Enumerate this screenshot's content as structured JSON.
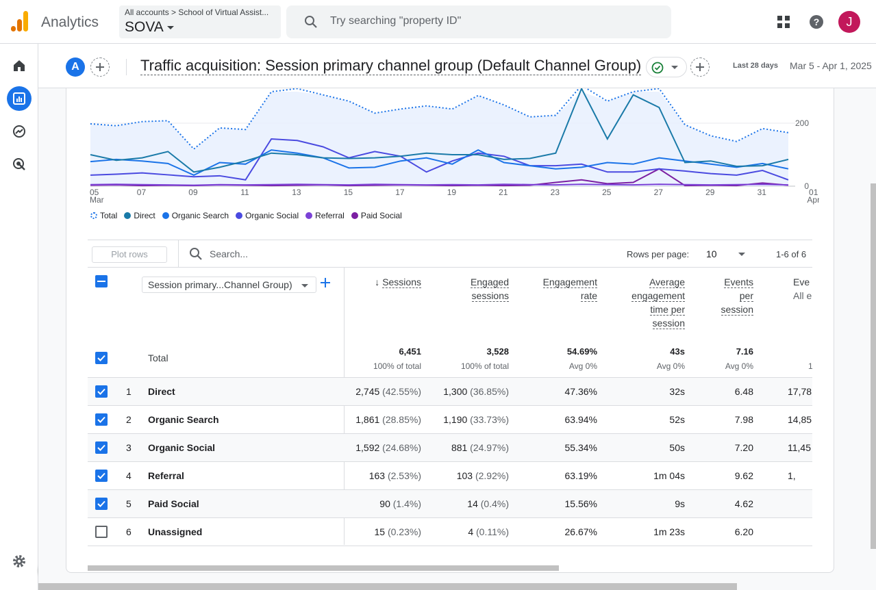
{
  "app": {
    "name": "Analytics",
    "account_crumb": "All accounts > School of Virtual Assist...",
    "property": "SOVA",
    "avatar_letter": "J"
  },
  "search": {
    "placeholder": "Try searching \"property ID\""
  },
  "icons": {
    "apps": "apps-grid-icon",
    "help": "help-icon",
    "home": "home-icon",
    "reports": "reports-icon",
    "explore": "explore-icon",
    "advertising": "advertising-icon",
    "settings": "gear-icon"
  },
  "header": {
    "comparison_chip": "A",
    "title": "Traffic acquisition: Session primary channel group (Default Channel Group)",
    "date_label": "Last 28 days",
    "date_range": "Mar 5 - Apr 1, 2025"
  },
  "chart_data": {
    "type": "line",
    "x": [
      "05 Mar",
      "06",
      "07",
      "08",
      "09",
      "10",
      "11",
      "12",
      "13",
      "14",
      "15",
      "16",
      "17",
      "18",
      "19",
      "20",
      "21",
      "22",
      "23",
      "24",
      "25",
      "26",
      "27",
      "28",
      "29",
      "30",
      "31",
      "01 Apr"
    ],
    "x_ticks": [
      {
        "main": "05",
        "sub": "Mar"
      },
      {
        "main": "07",
        "sub": ""
      },
      {
        "main": "09",
        "sub": ""
      },
      {
        "main": "11",
        "sub": ""
      },
      {
        "main": "13",
        "sub": ""
      },
      {
        "main": "15",
        "sub": ""
      },
      {
        "main": "17",
        "sub": ""
      },
      {
        "main": "19",
        "sub": ""
      },
      {
        "main": "21",
        "sub": ""
      },
      {
        "main": "23",
        "sub": ""
      },
      {
        "main": "25",
        "sub": ""
      },
      {
        "main": "27",
        "sub": ""
      },
      {
        "main": "29",
        "sub": ""
      },
      {
        "main": "31",
        "sub": ""
      },
      {
        "main": "01",
        "sub": "Apr"
      }
    ],
    "y_ticks": [
      "200",
      "0"
    ],
    "ylim": [
      0,
      300
    ],
    "series": [
      {
        "name": "Total",
        "color": "#1a73e8",
        "style": "dotted",
        "values": [
          198,
          192,
          205,
          208,
          118,
          185,
          180,
          300,
          310,
          290,
          270,
          232,
          245,
          255,
          245,
          288,
          258,
          220,
          225,
          320,
          270,
          300,
          310,
          195,
          160,
          142,
          183,
          170
        ]
      },
      {
        "name": "Direct",
        "color": "#1a7aa8",
        "style": "solid",
        "values": [
          100,
          82,
          90,
          110,
          45,
          60,
          80,
          105,
          100,
          90,
          88,
          90,
          95,
          105,
          100,
          100,
          85,
          88,
          105,
          310,
          150,
          290,
          250,
          75,
          80,
          63,
          65,
          85
        ]
      },
      {
        "name": "Organic Search",
        "color": "#1a73e8",
        "style": "solid",
        "values": [
          78,
          85,
          80,
          72,
          35,
          75,
          70,
          115,
          105,
          90,
          58,
          60,
          80,
          90,
          70,
          115,
          75,
          65,
          55,
          60,
          75,
          70,
          90,
          80,
          70,
          60,
          72,
          55
        ]
      },
      {
        "name": "Organic Social",
        "color": "#4a4ae0",
        "style": "solid",
        "values": [
          35,
          38,
          42,
          36,
          30,
          33,
          20,
          150,
          145,
          125,
          90,
          110,
          95,
          45,
          80,
          105,
          95,
          65,
          65,
          70,
          45,
          45,
          55,
          48,
          40,
          35,
          50,
          20
        ]
      },
      {
        "name": "Referral",
        "color": "#7b42d6",
        "style": "solid",
        "values": [
          5,
          6,
          5,
          4,
          3,
          5,
          4,
          5,
          6,
          5,
          4,
          6,
          5,
          4,
          5,
          4,
          6,
          5,
          4,
          6,
          5,
          4,
          6,
          5,
          4,
          5,
          6,
          4
        ]
      },
      {
        "name": "Paid Social",
        "color": "#7b1fa2",
        "style": "solid",
        "values": [
          3,
          4,
          2,
          3,
          2,
          4,
          3,
          2,
          3,
          4,
          2,
          3,
          4,
          3,
          2,
          3,
          2,
          3,
          12,
          20,
          8,
          12,
          55,
          2,
          3,
          2,
          10,
          3
        ]
      }
    ]
  },
  "table": {
    "plot_rows": "Plot rows",
    "search_placeholder": "Search...",
    "rows_per_page_label": "Rows per page:",
    "rows_per_page": "10",
    "pager": "1-6 of 6",
    "dimension": "Session primary...Channel Group)",
    "columns": [
      {
        "lines": [
          "Sessions"
        ],
        "sorted": true
      },
      {
        "lines": [
          "Engaged",
          "sessions"
        ]
      },
      {
        "lines": [
          "Engagement",
          "rate"
        ]
      },
      {
        "lines": [
          "Average",
          "engagement",
          "time per",
          "session"
        ]
      },
      {
        "lines": [
          "Events",
          "per",
          "session"
        ]
      },
      {
        "lines": [
          "Eve",
          "All e"
        ]
      }
    ],
    "total": {
      "label": "Total",
      "values": [
        "6,451",
        "3,528",
        "54.69%",
        "43s",
        "7.16",
        ""
      ],
      "subs": [
        "100% of total",
        "100% of total",
        "Avg 0%",
        "Avg 0%",
        "Avg 0%",
        "1"
      ]
    },
    "rows": [
      {
        "rank": "1",
        "name": "Direct",
        "checked": true,
        "sessions": "2,745",
        "sessions_pct": "(42.55%)",
        "engaged": "1,300",
        "engaged_pct": "(36.85%)",
        "rate": "47.36%",
        "time": "32s",
        "events": "6.48",
        "extra": "17,78"
      },
      {
        "rank": "2",
        "name": "Organic Search",
        "checked": true,
        "sessions": "1,861",
        "sessions_pct": "(28.85%)",
        "engaged": "1,190",
        "engaged_pct": "(33.73%)",
        "rate": "63.94%",
        "time": "52s",
        "events": "7.98",
        "extra": "14,85"
      },
      {
        "rank": "3",
        "name": "Organic Social",
        "checked": true,
        "sessions": "1,592",
        "sessions_pct": "(24.68%)",
        "engaged": "881",
        "engaged_pct": "(24.97%)",
        "rate": "55.34%",
        "time": "50s",
        "events": "7.20",
        "extra": "11,45"
      },
      {
        "rank": "4",
        "name": "Referral",
        "checked": true,
        "sessions": "163",
        "sessions_pct": "(2.53%)",
        "engaged": "103",
        "engaged_pct": "(2.92%)",
        "rate": "63.19%",
        "time": "1m 04s",
        "events": "9.62",
        "extra": "1,"
      },
      {
        "rank": "5",
        "name": "Paid Social",
        "checked": true,
        "sessions": "90",
        "sessions_pct": "(1.4%)",
        "engaged": "14",
        "engaged_pct": "(0.4%)",
        "rate": "15.56%",
        "time": "9s",
        "events": "4.62",
        "extra": ""
      },
      {
        "rank": "6",
        "name": "Unassigned",
        "checked": false,
        "sessions": "15",
        "sessions_pct": "(0.23%)",
        "engaged": "4",
        "engaged_pct": "(0.11%)",
        "rate": "26.67%",
        "time": "1m 23s",
        "events": "6.20",
        "extra": ""
      }
    ]
  }
}
